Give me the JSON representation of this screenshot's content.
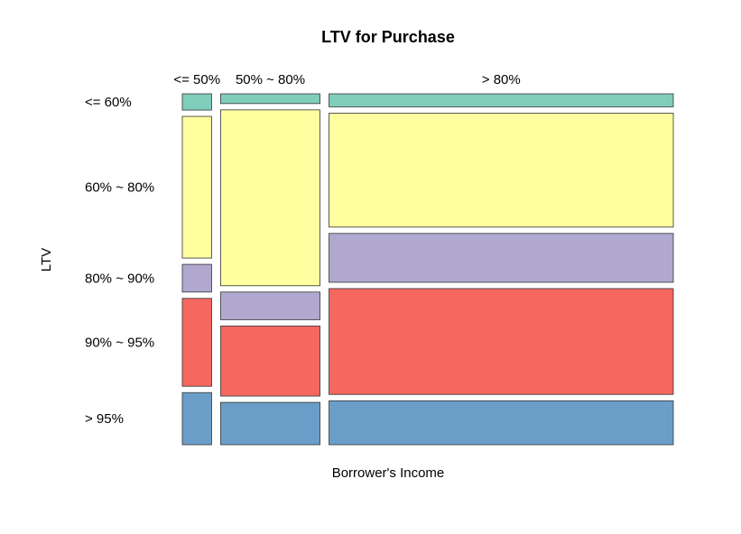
{
  "chart_data": {
    "type": "mosaic",
    "title": "LTV for Purchase",
    "xlabel": "Borrower's Income",
    "ylabel": "LTV",
    "x_categories": [
      "<= 50%",
      "50% ~ 80%",
      "> 80%"
    ],
    "y_categories": [
      "<= 60%",
      "60% ~ 80%",
      "80% ~ 90%",
      "90% ~ 95%",
      "> 95%"
    ],
    "x_shares": [
      0.062,
      0.21,
      0.728
    ],
    "conditional_shares": [
      [
        0.05,
        0.435,
        0.085,
        0.27,
        0.16
      ],
      [
        0.03,
        0.54,
        0.085,
        0.215,
        0.13
      ],
      [
        0.04,
        0.35,
        0.15,
        0.325,
        0.135
      ]
    ],
    "colors": [
      "#7fcdbb",
      "#ffffa0",
      "#b0a8cf",
      "#f4685f",
      "#6a9ec8"
    ]
  }
}
